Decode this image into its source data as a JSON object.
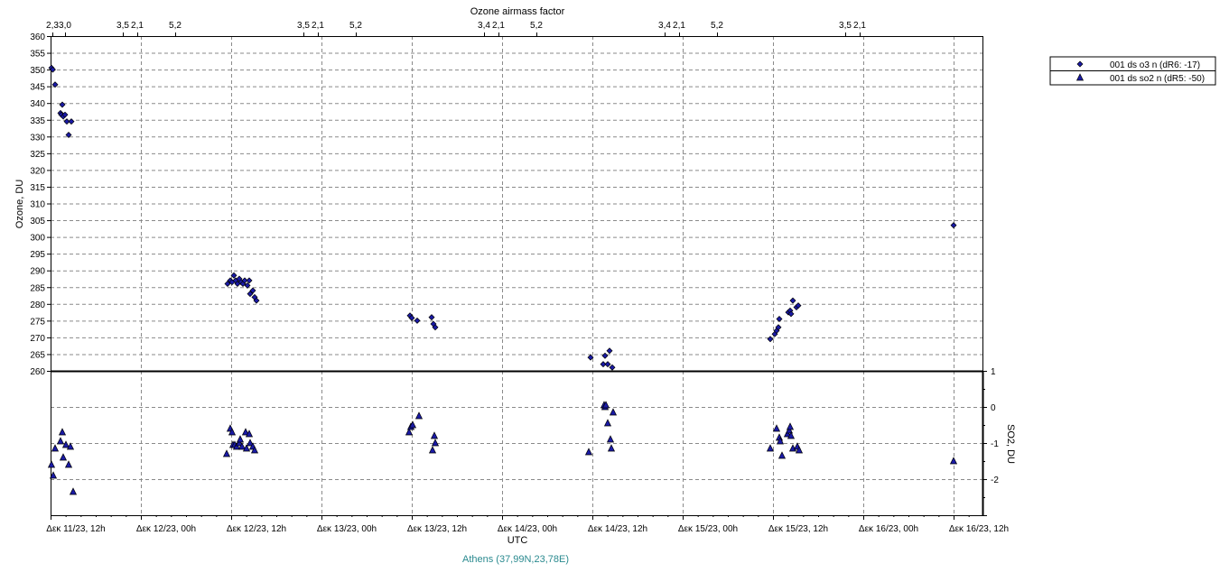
{
  "chart_data": {
    "type": "scatter",
    "top_axis_label": "Ozone airmass factor",
    "top_ticks": [
      {
        "t": 0.01,
        "label": "2,3"
      },
      {
        "t": 0.08,
        "label": "3,0"
      },
      {
        "t": 0.4,
        "label": "3,5"
      },
      {
        "t": 0.48,
        "label": "2,1"
      },
      {
        "t": 0.69,
        "label": "5,2"
      },
      {
        "t": 1.4,
        "label": "3,5"
      },
      {
        "t": 1.48,
        "label": "2,1"
      },
      {
        "t": 1.69,
        "label": "5,2"
      },
      {
        "t": 2.4,
        "label": "3,4"
      },
      {
        "t": 2.48,
        "label": "2,1"
      },
      {
        "t": 2.69,
        "label": "5,2"
      },
      {
        "t": 3.4,
        "label": "3,4"
      },
      {
        "t": 3.48,
        "label": "2,1"
      },
      {
        "t": 3.69,
        "label": "5,2"
      },
      {
        "t": 4.4,
        "label": "3,5"
      },
      {
        "t": 4.48,
        "label": "2,1"
      }
    ],
    "x_label": "UTC",
    "x_range": [
      0,
      5.16
    ],
    "x_ticks": [
      {
        "t": 0,
        "label": "Δεκ 11/23, 12h"
      },
      {
        "t": 0.5,
        "label": "Δεκ 12/23, 00h"
      },
      {
        "t": 1.0,
        "label": "Δεκ 12/23, 12h"
      },
      {
        "t": 1.5,
        "label": "Δεκ 13/23, 00h"
      },
      {
        "t": 2.0,
        "label": "Δεκ 13/23, 12h"
      },
      {
        "t": 2.5,
        "label": "Δεκ 14/23, 00h"
      },
      {
        "t": 3.0,
        "label": "Δεκ 14/23, 12h"
      },
      {
        "t": 3.5,
        "label": "Δεκ 15/23, 00h"
      },
      {
        "t": 4.0,
        "label": "Δεκ 15/23, 12h"
      },
      {
        "t": 4.5,
        "label": "Δεκ 16/23, 00h"
      },
      {
        "t": 5.0,
        "label": "Δεκ 16/23, 12h"
      }
    ],
    "ozone_label": "Ozone, DU",
    "ozone_range": [
      260,
      360
    ],
    "so2_label": "SO2, DU",
    "so2_range": [
      -3,
      1
    ],
    "so2_ticks": [
      1,
      0,
      -1,
      -2
    ],
    "grid": true,
    "legend_position": "top-right",
    "location": "Athens (37,99N,23,78E)",
    "series": [
      {
        "name": "001 ds o3  n (dR6: -17)",
        "marker": "diamond",
        "color": "#1a1aa6",
        "points": [
          [
            0.005,
            350.5
          ],
          [
            0.012,
            350
          ],
          [
            0.025,
            345.5
          ],
          [
            0.055,
            337
          ],
          [
            0.065,
            339.5
          ],
          [
            0.06,
            336.5
          ],
          [
            0.07,
            336
          ],
          [
            0.08,
            336.5
          ],
          [
            0.09,
            334.5
          ],
          [
            0.1,
            330.5
          ],
          [
            0.115,
            334.5
          ],
          [
            0.98,
            286
          ],
          [
            0.995,
            287
          ],
          [
            1.005,
            286.5
          ],
          [
            1.015,
            288.5
          ],
          [
            1.025,
            287
          ],
          [
            1.035,
            286
          ],
          [
            1.045,
            287.5
          ],
          [
            1.055,
            286.5
          ],
          [
            1.065,
            286
          ],
          [
            1.075,
            287
          ],
          [
            1.09,
            285.5
          ],
          [
            1.1,
            287
          ],
          [
            1.105,
            283
          ],
          [
            1.12,
            284
          ],
          [
            1.13,
            282
          ],
          [
            1.14,
            281
          ],
          [
            1.99,
            276.5
          ],
          [
            2.0,
            275.8
          ],
          [
            2.03,
            275
          ],
          [
            2.11,
            276
          ],
          [
            2.12,
            274
          ],
          [
            2.13,
            273
          ],
          [
            2.99,
            264
          ],
          [
            3.06,
            262
          ],
          [
            3.07,
            264.5
          ],
          [
            3.085,
            262
          ],
          [
            3.095,
            266
          ],
          [
            3.11,
            261
          ],
          [
            3.985,
            269.5
          ],
          [
            4.01,
            271
          ],
          [
            4.02,
            272
          ],
          [
            4.03,
            273
          ],
          [
            4.035,
            275.5
          ],
          [
            4.085,
            277.5
          ],
          [
            4.095,
            278
          ],
          [
            4.1,
            277
          ],
          [
            4.11,
            281
          ],
          [
            4.13,
            279
          ],
          [
            4.14,
            279.5
          ],
          [
            5.0,
            303.5
          ]
        ]
      },
      {
        "name": "001 ds so2  n (dR5: -50)",
        "marker": "triangle",
        "color": "#1a1aa6",
        "points": [
          [
            0.005,
            -1.6
          ],
          [
            0.015,
            -1.9
          ],
          [
            0.025,
            -1.15
          ],
          [
            0.055,
            -0.95
          ],
          [
            0.065,
            -0.7
          ],
          [
            0.07,
            -1.4
          ],
          [
            0.085,
            -1.05
          ],
          [
            0.1,
            -1.6
          ],
          [
            0.11,
            -1.1
          ],
          [
            0.125,
            -2.35
          ],
          [
            0.975,
            -1.3
          ],
          [
            0.995,
            -0.6
          ],
          [
            1.005,
            -0.7
          ],
          [
            1.01,
            -1.05
          ],
          [
            1.02,
            -1.05
          ],
          [
            1.03,
            -1.1
          ],
          [
            1.045,
            -1.0
          ],
          [
            1.05,
            -0.9
          ],
          [
            1.06,
            -1.1
          ],
          [
            1.08,
            -0.7
          ],
          [
            1.085,
            -1.15
          ],
          [
            1.1,
            -0.75
          ],
          [
            1.105,
            -1.0
          ],
          [
            1.12,
            -1.1
          ],
          [
            1.13,
            -1.2
          ],
          [
            1.985,
            -0.7
          ],
          [
            1.995,
            -0.55
          ],
          [
            2.005,
            -0.5
          ],
          [
            2.04,
            -0.25
          ],
          [
            2.115,
            -1.2
          ],
          [
            2.125,
            -0.8
          ],
          [
            2.13,
            -1.0
          ],
          [
            2.98,
            -1.25
          ],
          [
            3.065,
            0.05
          ],
          [
            3.07,
            0.0
          ],
          [
            3.075,
            0.05
          ],
          [
            3.085,
            -0.45
          ],
          [
            3.1,
            -0.9
          ],
          [
            3.105,
            -1.15
          ],
          [
            3.115,
            -0.15
          ],
          [
            3.985,
            -1.15
          ],
          [
            4.02,
            -0.6
          ],
          [
            4.035,
            -0.85
          ],
          [
            4.04,
            -0.95
          ],
          [
            4.05,
            -1.35
          ],
          [
            4.08,
            -0.75
          ],
          [
            4.09,
            -0.65
          ],
          [
            4.095,
            -0.55
          ],
          [
            4.1,
            -0.8
          ],
          [
            4.11,
            -1.15
          ],
          [
            4.135,
            -1.1
          ],
          [
            4.145,
            -1.2
          ],
          [
            5.0,
            -1.5
          ]
        ]
      }
    ]
  }
}
